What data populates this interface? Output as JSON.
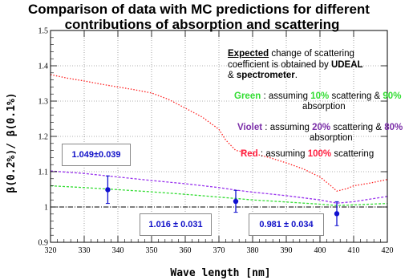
{
  "title_line1": "Comparison of data with MC predictions for different",
  "title_line2": "contributions of absorption and scattering",
  "chart_data": {
    "type": "line",
    "xlabel": "Wave length [nm]",
    "ylabel": "β(0.2%)/ β(0.1%)",
    "xlim": [
      320,
      420
    ],
    "ylim": [
      0.9,
      1.5
    ],
    "xticks": [
      320,
      330,
      340,
      350,
      360,
      370,
      380,
      390,
      400,
      410,
      420
    ],
    "yticks": [
      0.9,
      1,
      1.1,
      1.2,
      1.3,
      1.4,
      1.5
    ],
    "grid": true,
    "reference_line": 1.0,
    "series": [
      {
        "name": "Red : assuming 100% scattering",
        "color": "#ff2020",
        "style": "dotted",
        "x": [
          320,
          325,
          330,
          335,
          340,
          345,
          350,
          355,
          360,
          365,
          370,
          372,
          374,
          375,
          380,
          385,
          390,
          395,
          400,
          403,
          405,
          408,
          410,
          415,
          420
        ],
        "y": [
          1.375,
          1.365,
          1.357,
          1.348,
          1.34,
          1.332,
          1.323,
          1.305,
          1.28,
          1.255,
          1.22,
          1.19,
          1.17,
          1.16,
          1.152,
          1.14,
          1.125,
          1.108,
          1.085,
          1.062,
          1.045,
          1.052,
          1.06,
          1.068,
          1.078
        ]
      },
      {
        "name": "Violet : assuming 20% scattering & 80% absorption",
        "color": "#9933ee",
        "style": "dashed",
        "x": [
          320,
          330,
          340,
          350,
          360,
          370,
          375,
          380,
          390,
          400,
          405,
          410,
          420
        ],
        "y": [
          1.102,
          1.095,
          1.085,
          1.075,
          1.066,
          1.055,
          1.048,
          1.042,
          1.032,
          1.02,
          1.011,
          1.015,
          1.03
        ]
      },
      {
        "name": "Green : assuming 10% scattering & 90% absorption",
        "color": "#33dd33",
        "style": "dashed",
        "x": [
          320,
          330,
          340,
          350,
          360,
          370,
          375,
          380,
          390,
          400,
          405,
          410,
          420
        ],
        "y": [
          1.06,
          1.055,
          1.049,
          1.043,
          1.036,
          1.028,
          1.024,
          1.02,
          1.014,
          1.008,
          1.004,
          1.006,
          1.01
        ]
      }
    ],
    "data_points": [
      {
        "x": 337,
        "y": 1.049,
        "yerr": 0.039
      },
      {
        "x": 375,
        "y": 1.016,
        "yerr": 0.031
      },
      {
        "x": 405,
        "y": 0.981,
        "yerr": 0.034
      }
    ],
    "data_color": "#1010d0",
    "point_labels": [
      "1.049±0.039",
      "1.016 ± 0.031",
      "0.981 ± 0.034"
    ],
    "annotations": {
      "expected_1": "Expected",
      "expected_2": " change of scattering",
      "expected_3": "coefficient is obtained by ",
      "udeal": "UDEAL",
      "amp": "& ",
      "spectrometer": "spectrometer",
      "period": ".",
      "green_name": "Green",
      "green_a": " : assuming ",
      "green_pct1": "10%",
      "green_b": " scattering & ",
      "green_pct2": "90%",
      "green_c": "absorption",
      "violet_name": "Violet",
      "violet_a": " : assuming ",
      "violet_pct1": "20%",
      "violet_b": " scattering & ",
      "violet_pct2": "80%",
      "violet_c": "absorption",
      "red_name": "Red",
      "red_a": " : assuming ",
      "red_pct": "100%",
      "red_b": " scattering"
    },
    "colors": {
      "green": "#33dd33",
      "violet": "#7b2ea8",
      "red": "#ff2040"
    }
  }
}
